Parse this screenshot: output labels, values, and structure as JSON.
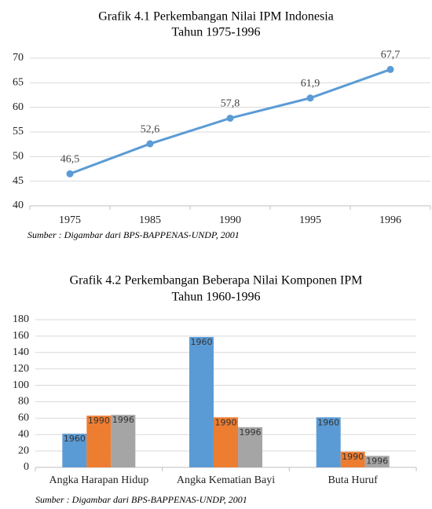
{
  "chart_data": [
    {
      "type": "line",
      "title": "Grafik 4.1 Perkembangan Nilai IPM Indonesia",
      "subtitle": "Tahun 1975-1996",
      "categories": [
        "1975",
        "1985",
        "1990",
        "1995",
        "1996"
      ],
      "values": [
        46.5,
        52.6,
        57.8,
        61.9,
        67.7
      ],
      "value_labels": [
        "46,5",
        "52,6",
        "57,8",
        "61,9",
        "67,7"
      ],
      "color": "#5b9bd5",
      "ylim": [
        40,
        70
      ],
      "yticks": [
        40,
        45,
        50,
        55,
        60,
        65,
        70
      ],
      "grid": true,
      "source": "Sumber : Digambar dari BPS-BAPPENAS-UNDP, 2001"
    },
    {
      "type": "bar",
      "title": "Grafik 4.2 Perkembangan Beberapa Nilai Komponen IPM",
      "subtitle": "Tahun 1960-1996",
      "categories": [
        "Angka Harapan Hidup",
        "Angka Kematian Bayi",
        "Buta Huruf"
      ],
      "series": [
        {
          "name": "1960",
          "color": "#5b9bd5",
          "values": [
            41,
            159,
            61
          ]
        },
        {
          "name": "1990",
          "color": "#ed7d31",
          "values": [
            63,
            61,
            19
          ]
        },
        {
          "name": "1996",
          "color": "#a5a5a5",
          "values": [
            64,
            49,
            14
          ]
        }
      ],
      "ylim": [
        0,
        180
      ],
      "yticks": [
        0,
        20,
        40,
        60,
        80,
        100,
        120,
        140,
        160,
        180
      ],
      "grid": true,
      "source": "Sumber : Digambar dari BPS-BAPPENAS-UNDP, 2001"
    }
  ]
}
